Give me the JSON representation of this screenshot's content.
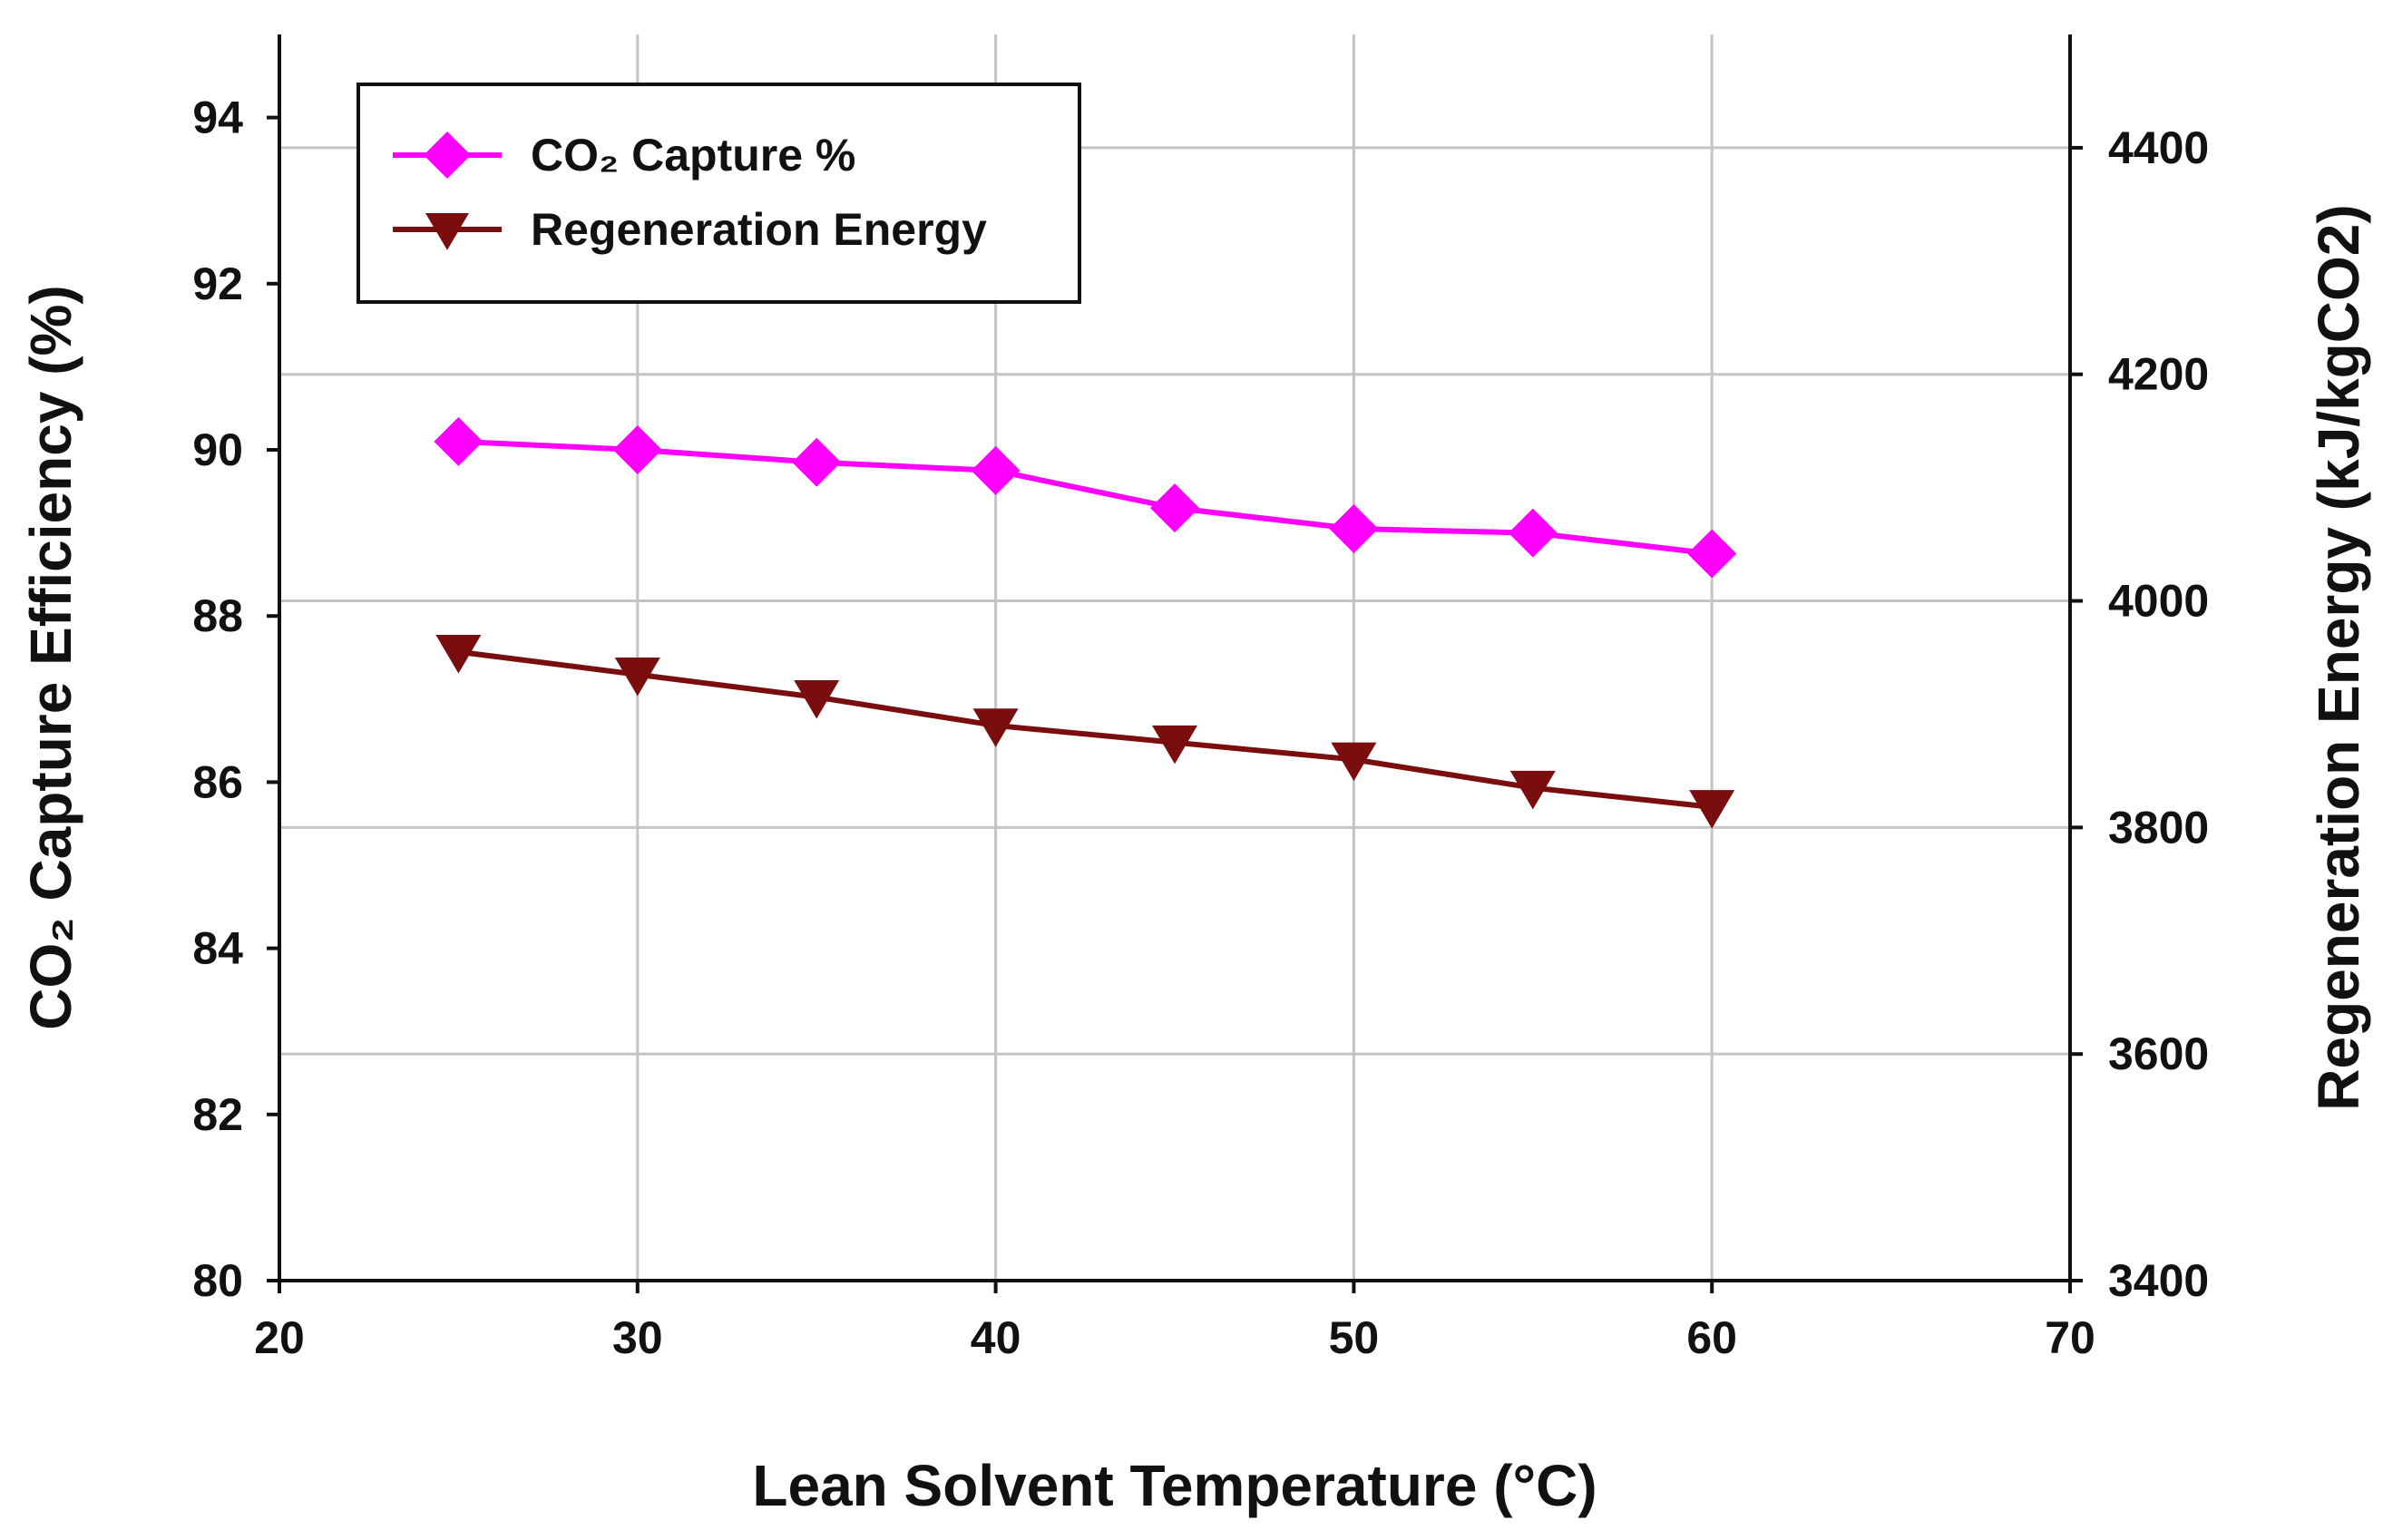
{
  "chart_data": {
    "type": "line",
    "x": [
      25,
      30,
      35,
      40,
      45,
      50,
      55,
      60
    ],
    "xlabel": "Lean  Solvent Temperature (°C)",
    "xlim": [
      20,
      70
    ],
    "xticks": [
      "20",
      "30",
      "40",
      "50",
      "60",
      "70"
    ],
    "ylabel": "CO₂ Capture Efficiency (%)",
    "ylim": [
      80,
      95
    ],
    "yticks": [
      "80",
      "82",
      "84",
      "86",
      "88",
      "90",
      "92",
      "94"
    ],
    "y2label": "Regeneration Energy (kJ/kgCO2)",
    "y2lim": [
      3400,
      4500
    ],
    "y2ticks": [
      "3400",
      "3600",
      "3800",
      "4000",
      "4200",
      "4400"
    ],
    "grid": true,
    "legend_position": "top-left",
    "series": [
      {
        "name": "CO₂ Capture %",
        "axis": "left",
        "marker": "diamond",
        "color": "#ff00ff",
        "values": [
          90.1,
          90.0,
          89.85,
          89.75,
          89.3,
          89.05,
          89.0,
          88.75
        ]
      },
      {
        "name": "Regeneration Energy",
        "axis": "right",
        "marker": "triangle-down",
        "color": "#7a0d0d",
        "values": [
          3955,
          3935,
          3915,
          3890,
          3875,
          3860,
          3835,
          3818
        ]
      }
    ]
  }
}
